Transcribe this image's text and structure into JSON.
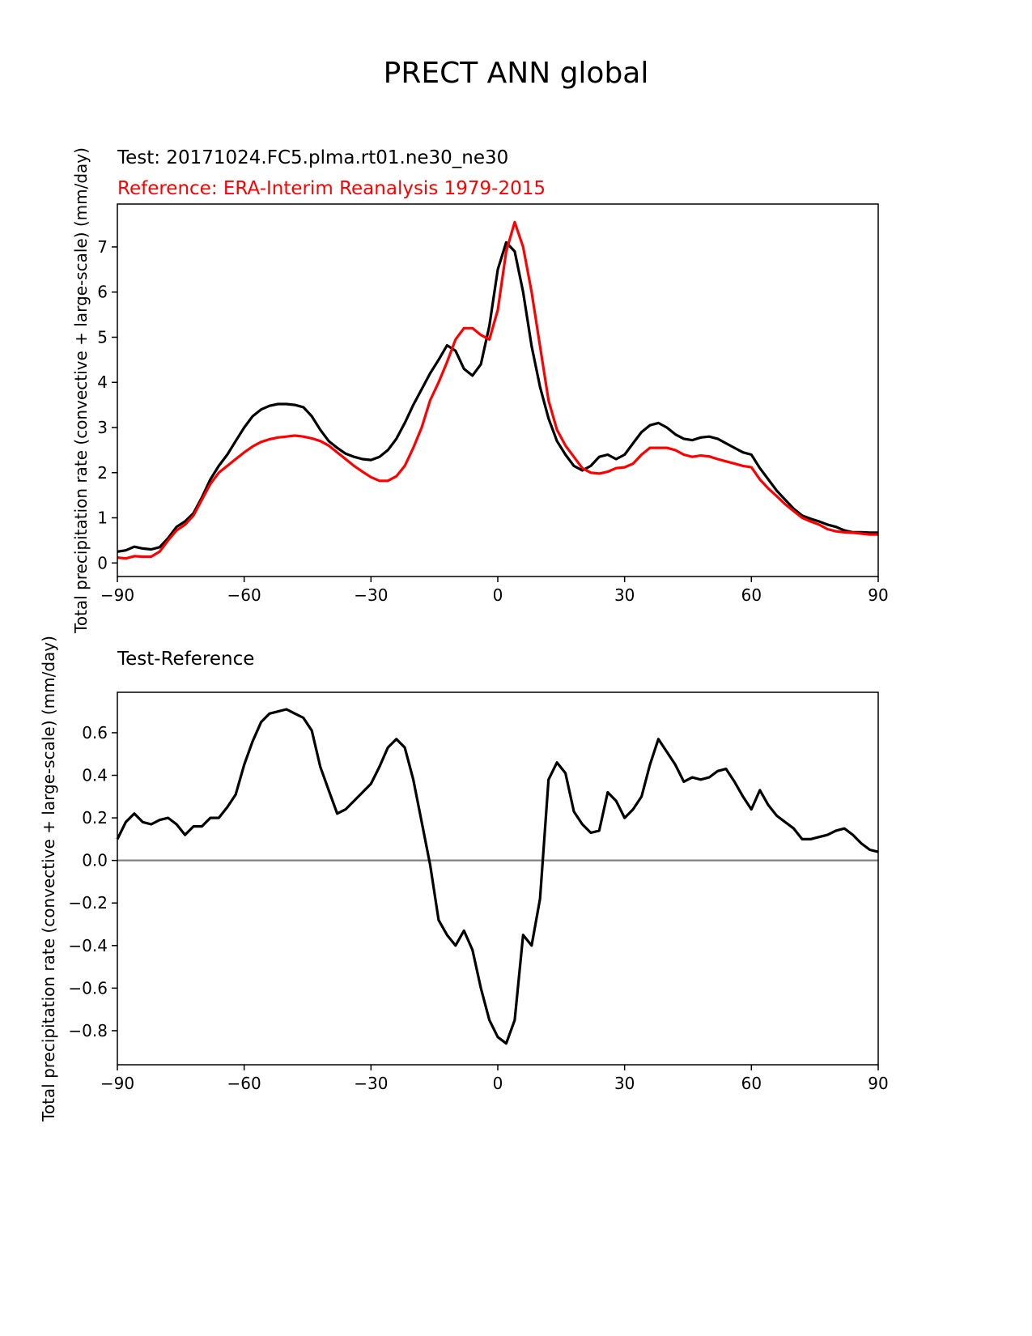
{
  "figure": {
    "title": "PRECT ANN global"
  },
  "chart_data": [
    {
      "type": "line",
      "test_label": "Test: 20171024.FC5.plma.rt01.ne30_ne30",
      "reference_label": "Reference: ERA-Interim Reanalysis 1979-2015",
      "ylabel": "Total precipitation rate (convective + large-scale) (mm/day)",
      "xlim": [
        -90,
        90
      ],
      "ylim": [
        -0.3,
        7.95
      ],
      "xticks": [
        "−90",
        "−60",
        "−30",
        "0",
        "30",
        "60",
        "90"
      ],
      "yticks": [
        "0",
        "1",
        "2",
        "3",
        "4",
        "5",
        "6",
        "7"
      ],
      "series": [
        {
          "name": "Test",
          "color": "#000000",
          "x": [
            -90,
            -88,
            -86,
            -84,
            -82,
            -80,
            -78,
            -76,
            -74,
            -72,
            -70,
            -68,
            -66,
            -64,
            -62,
            -60,
            -58,
            -56,
            -54,
            -52,
            -50,
            -48,
            -46,
            -44,
            -42,
            -40,
            -38,
            -36,
            -34,
            -32,
            -30,
            -28,
            -26,
            -24,
            -22,
            -20,
            -18,
            -16,
            -14,
            -12,
            -10,
            -8,
            -6,
            -4,
            -2,
            0,
            2,
            4,
            6,
            8,
            10,
            12,
            14,
            16,
            18,
            20,
            22,
            24,
            26,
            28,
            30,
            32,
            34,
            36,
            38,
            40,
            42,
            44,
            46,
            48,
            50,
            52,
            54,
            56,
            58,
            60,
            62,
            64,
            66,
            68,
            70,
            72,
            74,
            76,
            78,
            80,
            82,
            84,
            86,
            88,
            90
          ],
          "y": [
            0.25,
            0.28,
            0.36,
            0.32,
            0.3,
            0.35,
            0.55,
            0.8,
            0.92,
            1.1,
            1.45,
            1.85,
            2.15,
            2.4,
            2.7,
            3.0,
            3.25,
            3.4,
            3.48,
            3.52,
            3.52,
            3.5,
            3.45,
            3.25,
            2.95,
            2.7,
            2.55,
            2.42,
            2.35,
            2.3,
            2.28,
            2.35,
            2.5,
            2.75,
            3.1,
            3.5,
            3.85,
            4.2,
            4.5,
            4.82,
            4.7,
            4.3,
            4.15,
            4.4,
            5.25,
            6.5,
            7.1,
            6.9,
            6.0,
            4.8,
            3.9,
            3.2,
            2.7,
            2.4,
            2.15,
            2.05,
            2.15,
            2.35,
            2.4,
            2.3,
            2.4,
            2.65,
            2.9,
            3.05,
            3.1,
            3.0,
            2.85,
            2.75,
            2.72,
            2.78,
            2.8,
            2.75,
            2.65,
            2.55,
            2.45,
            2.4,
            2.1,
            1.85,
            1.6,
            1.4,
            1.2,
            1.05,
            0.98,
            0.92,
            0.85,
            0.8,
            0.72,
            0.68,
            0.68,
            0.67,
            0.67
          ]
        },
        {
          "name": "Reference",
          "color": "#ff0000",
          "x": [
            -90,
            -88,
            -86,
            -84,
            -82,
            -80,
            -78,
            -76,
            -74,
            -72,
            -70,
            -68,
            -66,
            -64,
            -62,
            -60,
            -58,
            -56,
            -54,
            -52,
            -50,
            -48,
            -46,
            -44,
            -42,
            -40,
            -38,
            -36,
            -34,
            -32,
            -30,
            -28,
            -26,
            -24,
            -22,
            -20,
            -18,
            -16,
            -14,
            -12,
            -10,
            -8,
            -6,
            -4,
            -2,
            0,
            2,
            4,
            6,
            8,
            10,
            12,
            14,
            16,
            18,
            20,
            22,
            24,
            26,
            28,
            30,
            32,
            34,
            36,
            38,
            40,
            42,
            44,
            46,
            48,
            50,
            52,
            54,
            56,
            58,
            60,
            62,
            64,
            66,
            68,
            70,
            72,
            74,
            76,
            78,
            80,
            82,
            84,
            86,
            88,
            90
          ],
          "y": [
            0.12,
            0.1,
            0.15,
            0.14,
            0.14,
            0.25,
            0.5,
            0.72,
            0.85,
            1.05,
            1.4,
            1.75,
            2.0,
            2.15,
            2.3,
            2.45,
            2.58,
            2.68,
            2.74,
            2.78,
            2.8,
            2.82,
            2.8,
            2.76,
            2.7,
            2.6,
            2.45,
            2.3,
            2.15,
            2.02,
            1.9,
            1.82,
            1.82,
            1.92,
            2.15,
            2.55,
            3.0,
            3.6,
            4.0,
            4.45,
            4.95,
            5.2,
            5.2,
            5.05,
            4.95,
            5.6,
            6.9,
            7.55,
            7.0,
            6.0,
            4.8,
            3.6,
            2.95,
            2.6,
            2.35,
            2.1,
            2.0,
            1.98,
            2.02,
            2.1,
            2.12,
            2.2,
            2.4,
            2.55,
            2.55,
            2.55,
            2.5,
            2.4,
            2.35,
            2.38,
            2.36,
            2.3,
            2.25,
            2.2,
            2.15,
            2.12,
            1.85,
            1.65,
            1.48,
            1.3,
            1.15,
            1.0,
            0.92,
            0.85,
            0.75,
            0.7,
            0.68,
            0.67,
            0.65,
            0.63,
            0.63
          ]
        }
      ]
    },
    {
      "type": "line",
      "title": "Test-Reference",
      "ylabel": "Total precipitation rate (convective + large-scale) (mm/day)",
      "xlim": [
        -90,
        90
      ],
      "ylim": [
        -0.96,
        0.79
      ],
      "xticks": [
        "−90",
        "−60",
        "−30",
        "0",
        "30",
        "60",
        "90"
      ],
      "yticks": [
        "0.6",
        "0.4",
        "0.2",
        "0.0",
        "−0.2",
        "−0.4",
        "−0.6",
        "−0.8"
      ],
      "reference_line": {
        "y": 0,
        "color": "#808080"
      },
      "series": [
        {
          "name": "Test-Reference",
          "color": "#000000",
          "x": [
            -90,
            -88,
            -86,
            -84,
            -82,
            -80,
            -78,
            -76,
            -74,
            -72,
            -70,
            -68,
            -66,
            -64,
            -62,
            -60,
            -58,
            -56,
            -54,
            -52,
            -50,
            -48,
            -46,
            -44,
            -42,
            -40,
            -38,
            -36,
            -34,
            -32,
            -30,
            -28,
            -26,
            -24,
            -22,
            -20,
            -18,
            -16,
            -14,
            -12,
            -10,
            -8,
            -6,
            -4,
            -2,
            0,
            2,
            4,
            6,
            8,
            10,
            12,
            14,
            16,
            18,
            20,
            22,
            24,
            26,
            28,
            30,
            32,
            34,
            36,
            38,
            40,
            42,
            44,
            46,
            48,
            50,
            52,
            54,
            56,
            58,
            60,
            62,
            64,
            66,
            68,
            70,
            72,
            74,
            76,
            78,
            80,
            82,
            84,
            86,
            88,
            90
          ],
          "y": [
            0.1,
            0.18,
            0.22,
            0.18,
            0.17,
            0.19,
            0.2,
            0.17,
            0.12,
            0.16,
            0.16,
            0.2,
            0.2,
            0.25,
            0.31,
            0.45,
            0.56,
            0.65,
            0.69,
            0.7,
            0.71,
            0.69,
            0.67,
            0.61,
            0.44,
            0.33,
            0.22,
            0.24,
            0.28,
            0.32,
            0.36,
            0.44,
            0.53,
            0.57,
            0.53,
            0.38,
            0.18,
            -0.02,
            -0.28,
            -0.35,
            -0.4,
            -0.33,
            -0.42,
            -0.6,
            -0.75,
            -0.83,
            -0.86,
            -0.75,
            -0.35,
            -0.4,
            -0.18,
            0.38,
            0.46,
            0.41,
            0.23,
            0.17,
            0.13,
            0.14,
            0.32,
            0.28,
            0.2,
            0.24,
            0.3,
            0.45,
            0.57,
            0.51,
            0.45,
            0.37,
            0.39,
            0.38,
            0.39,
            0.42,
            0.43,
            0.37,
            0.3,
            0.24,
            0.33,
            0.26,
            0.21,
            0.18,
            0.15,
            0.1,
            0.1,
            0.11,
            0.12,
            0.14,
            0.15,
            0.12,
            0.08,
            0.05,
            0.04
          ]
        }
      ]
    }
  ]
}
